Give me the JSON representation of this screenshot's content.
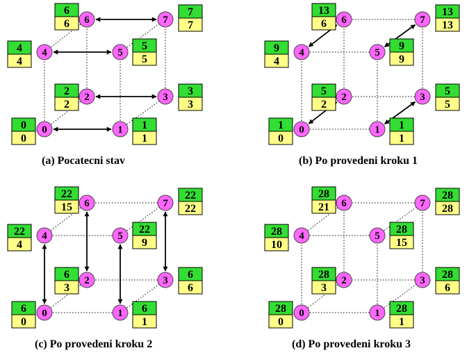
{
  "colors": {
    "node_fill": "#ff66ff",
    "top_box": "#33dd33",
    "bottom_box": "#ffff88",
    "edge": "#000000"
  },
  "panels": [
    {
      "caption": "(a) Pocatecni stav",
      "nodes": [
        {
          "id": "0",
          "top": "0",
          "bottom": "0"
        },
        {
          "id": "1",
          "top": "1",
          "bottom": "1"
        },
        {
          "id": "2",
          "top": "2",
          "bottom": "2"
        },
        {
          "id": "3",
          "top": "3",
          "bottom": "3"
        },
        {
          "id": "4",
          "top": "4",
          "bottom": "4"
        },
        {
          "id": "5",
          "top": "5",
          "bottom": "5"
        },
        {
          "id": "6",
          "top": "6",
          "bottom": "6"
        },
        {
          "id": "7",
          "top": "7",
          "bottom": "7"
        }
      ],
      "arrows": [
        [
          "0",
          "1"
        ],
        [
          "2",
          "3"
        ],
        [
          "4",
          "5"
        ],
        [
          "6",
          "7"
        ]
      ]
    },
    {
      "caption": "(b) Po provedeni kroku 1",
      "nodes": [
        {
          "id": "0",
          "top": "1",
          "bottom": "0"
        },
        {
          "id": "1",
          "top": "1",
          "bottom": "1"
        },
        {
          "id": "2",
          "top": "5",
          "bottom": "2"
        },
        {
          "id": "3",
          "top": "5",
          "bottom": "5"
        },
        {
          "id": "4",
          "top": "9",
          "bottom": "4"
        },
        {
          "id": "5",
          "top": "9",
          "bottom": "9"
        },
        {
          "id": "6",
          "top": "13",
          "bottom": "6"
        },
        {
          "id": "7",
          "top": "13",
          "bottom": "13"
        }
      ],
      "arrows": [
        [
          "0",
          "2"
        ],
        [
          "1",
          "3"
        ],
        [
          "4",
          "6"
        ],
        [
          "5",
          "7"
        ]
      ]
    },
    {
      "caption": "(c) Po provedeni kroku 2",
      "nodes": [
        {
          "id": "0",
          "top": "6",
          "bottom": "0"
        },
        {
          "id": "1",
          "top": "6",
          "bottom": "1"
        },
        {
          "id": "2",
          "top": "6",
          "bottom": "3"
        },
        {
          "id": "3",
          "top": "6",
          "bottom": "6"
        },
        {
          "id": "4",
          "top": "22",
          "bottom": "4"
        },
        {
          "id": "5",
          "top": "22",
          "bottom": "9"
        },
        {
          "id": "6",
          "top": "22",
          "bottom": "15"
        },
        {
          "id": "7",
          "top": "22",
          "bottom": "22"
        }
      ],
      "arrows": [
        [
          "0",
          "4"
        ],
        [
          "1",
          "5"
        ],
        [
          "2",
          "6"
        ],
        [
          "3",
          "7"
        ]
      ]
    },
    {
      "caption": "(d) Po provedeni kroku 3",
      "nodes": [
        {
          "id": "0",
          "top": "28",
          "bottom": "0"
        },
        {
          "id": "1",
          "top": "28",
          "bottom": "1"
        },
        {
          "id": "2",
          "top": "28",
          "bottom": "3"
        },
        {
          "id": "3",
          "top": "28",
          "bottom": "6"
        },
        {
          "id": "4",
          "top": "28",
          "bottom": "10"
        },
        {
          "id": "5",
          "top": "28",
          "bottom": "15"
        },
        {
          "id": "6",
          "top": "28",
          "bottom": "21"
        },
        {
          "id": "7",
          "top": "28",
          "bottom": "28"
        }
      ],
      "arrows": []
    }
  ]
}
